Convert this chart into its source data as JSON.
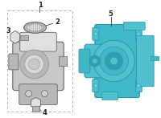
{
  "bg_color": "#ffffff",
  "box_color": "#dddddd",
  "grey_part": "#c8c8c8",
  "grey_dark": "#999999",
  "grey_mid": "#b8b8b8",
  "grey_light": "#e0e0e0",
  "blue_part": "#40b8c8",
  "blue_dark": "#2898a8",
  "blue_mid": "#50c0d0",
  "blue_light": "#68d0e0",
  "edge_color": "#666666",
  "label_color": "#333333",
  "line_color": "#555555"
}
